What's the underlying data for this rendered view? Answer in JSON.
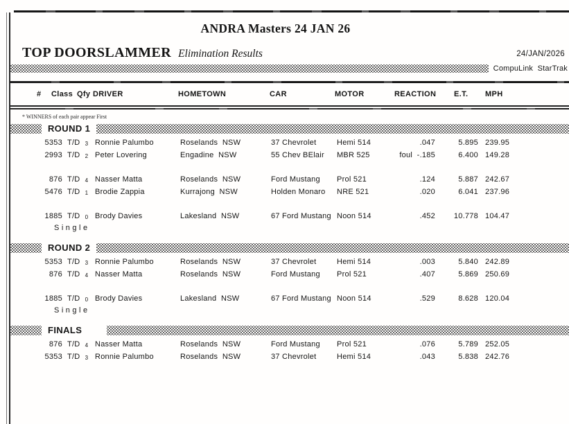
{
  "page": {
    "title": "ANDRA Masters 24 JAN 26",
    "category": "TOP DOORSLAMMER",
    "subtitle": "Elimination Results",
    "date": "24/JAN/2026",
    "brand": "CompuLink  StarTrak",
    "winners_note": "* WINNERS of each pair appear First"
  },
  "table": {
    "columns": [
      "#",
      "Class",
      "Qfy",
      "DRIVER",
      "HOMETOWN",
      "CAR",
      "MOTOR",
      "REACTION",
      "E.T.",
      "MPH"
    ]
  },
  "sections": [
    {
      "title": "ROUND 1",
      "groups": [
        {
          "rows": [
            {
              "no": "5353",
              "class": "T/D",
              "qfy": "3",
              "driver": "Ronnie Palumbo",
              "hometown": "Roselands  NSW",
              "car": "37 Chevrolet",
              "motor": "Hemi 514",
              "foul": "",
              "reaction": ".047",
              "et": "5.895",
              "mph": "239.95"
            },
            {
              "no": "2993",
              "class": "T/D",
              "qfy": "2",
              "driver": "Peter Lovering",
              "hometown": "Engadine  NSW",
              "car": "55 Chev BElair",
              "motor": "MBR 525",
              "foul": "foul",
              "reaction": "-.185",
              "et": "6.400",
              "mph": "149.28"
            }
          ]
        },
        {
          "rows": [
            {
              "no": "876",
              "class": "T/D",
              "qfy": "4",
              "driver": "Nasser Matta",
              "hometown": "Roselands  NSW",
              "car": "Ford Mustang",
              "motor": "Prol 521",
              "foul": "",
              "reaction": ".124",
              "et": "5.887",
              "mph": "242.67"
            },
            {
              "no": "5476",
              "class": "T/D",
              "qfy": "1",
              "driver": "Brodie Zappia",
              "hometown": "Kurrajong  NSW",
              "car": "Holden Monaro",
              "motor": "NRE 521",
              "foul": "",
              "reaction": ".020",
              "et": "6.041",
              "mph": "237.96"
            }
          ]
        },
        {
          "rows": [
            {
              "no": "1885",
              "class": "T/D",
              "qfy": "0",
              "driver": "Brody Davies",
              "hometown": "Lakesland  NSW",
              "car": "67 Ford Mustang",
              "motor": "Noon 514",
              "foul": "",
              "reaction": ".452",
              "et": "10.778",
              "mph": "104.47",
              "single": "Single"
            }
          ]
        }
      ]
    },
    {
      "title": "ROUND 2",
      "groups": [
        {
          "rows": [
            {
              "no": "5353",
              "class": "T/D",
              "qfy": "3",
              "driver": "Ronnie Palumbo",
              "hometown": "Roselands  NSW",
              "car": "37 Chevrolet",
              "motor": "Hemi 514",
              "foul": "",
              "reaction": ".003",
              "et": "5.840",
              "mph": "242.89"
            },
            {
              "no": "876",
              "class": "T/D",
              "qfy": "4",
              "driver": "Nasser Matta",
              "hometown": "Roselands  NSW",
              "car": "Ford Mustang",
              "motor": "Prol 521",
              "foul": "",
              "reaction": ".407",
              "et": "5.869",
              "mph": "250.69"
            }
          ]
        },
        {
          "rows": [
            {
              "no": "1885",
              "class": "T/D",
              "qfy": "0",
              "driver": "Brody Davies",
              "hometown": "Lakesland  NSW",
              "car": "67 Ford Mustang",
              "motor": "Noon 514",
              "foul": "",
              "reaction": ".529",
              "et": "8.628",
              "mph": "120.04",
              "single": "Single"
            }
          ]
        }
      ]
    },
    {
      "title": "FINALS",
      "groups": [
        {
          "rows": [
            {
              "no": "876",
              "class": "T/D",
              "qfy": "4",
              "driver": "Nasser Matta",
              "hometown": "Roselands  NSW",
              "car": "Ford Mustang",
              "motor": "Prol 521",
              "foul": "",
              "reaction": ".076",
              "et": "5.789",
              "mph": "252.05"
            },
            {
              "no": "5353",
              "class": "T/D",
              "qfy": "3",
              "driver": "Ronnie Palumbo",
              "hometown": "Roselands  NSW",
              "car": "37 Chevrolet",
              "motor": "Hemi 514",
              "foul": "",
              "reaction": ".043",
              "et": "5.838",
              "mph": "242.76"
            }
          ]
        }
      ]
    }
  ]
}
